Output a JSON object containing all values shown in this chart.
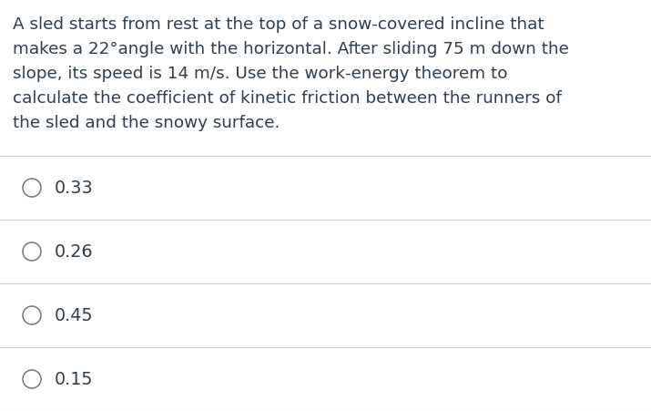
{
  "question_lines": [
    "A sled starts from rest at the top of a snow-covered incline that",
    "makes a 22°angle with the horizontal. After sliding 75 m down the",
    "slope, its speed is 14 m/s. Use the work-energy theorem to",
    "calculate the coefficient of kinetic friction between the runners of",
    "the sled and the snowy surface."
  ],
  "options": [
    "0.33",
    "0.26",
    "0.45",
    "0.15"
  ],
  "background_color": "#ffffff",
  "text_color": "#2d3e50",
  "line_color": "#cccccc",
  "font_size_question": 13.2,
  "font_size_options": 13.8,
  "circle_color": "#777777"
}
